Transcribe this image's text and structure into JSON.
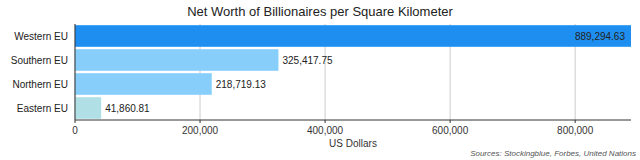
{
  "chart_data": {
    "type": "bar",
    "orientation": "horizontal",
    "title": "Net Worth of Billionaires per Square Kilometer",
    "categories": [
      "Western EU",
      "Southern EU",
      "Northern EU",
      "Eastern EU"
    ],
    "values": [
      889294.63,
      325417.75,
      218719.13,
      41860.81
    ],
    "value_labels": [
      "889,294.63",
      "325,417.75",
      "218,719.13",
      "41,860.81"
    ],
    "colors": [
      "#1e8ff0",
      "#87cefa",
      "#87cefa",
      "#b0e0e6"
    ],
    "xlim": [
      0,
      889294.63
    ],
    "xticks": [
      0,
      {
        "value": 200000,
        "label": "200,000"
      },
      {
        "value": 400000,
        "label": "400,000"
      },
      {
        "value": 600000,
        "label": "600,000"
      },
      {
        "value": 800000,
        "label": "800,000"
      }
    ],
    "xlabel": "US Dollars",
    "annotations": [
      "Sources: Stockingblue, Forbes, United Nations"
    ],
    "grid": true,
    "data_labels": true
  }
}
